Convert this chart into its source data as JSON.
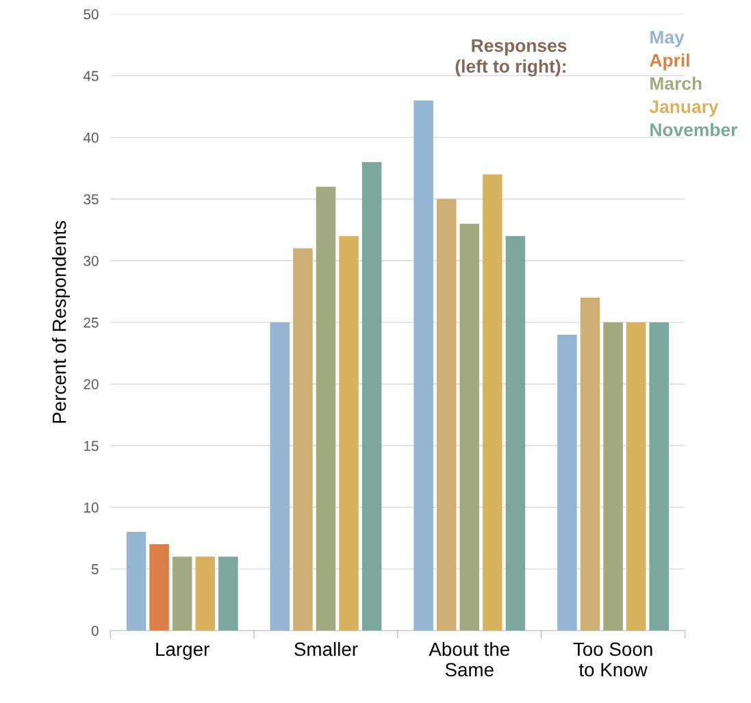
{
  "chart_data": {
    "type": "bar",
    "ylabel": "Percent of Respondents",
    "legend_title": "Responses\n(left to right):",
    "categories": [
      "Larger",
      "Smaller",
      "About the\nSame",
      "Too Soon\nto Know"
    ],
    "series": [
      {
        "name": "May",
        "color": "#95b5d5",
        "values": [
          8,
          25,
          43,
          24
        ]
      },
      {
        "name": "April",
        "color": "#dd8047",
        "colors": [
          "#dd8047",
          "#cfae74",
          "#cfae74",
          "#cfae74"
        ],
        "values": [
          7,
          31,
          35,
          27
        ]
      },
      {
        "name": "March",
        "color": "#a2ab80",
        "values": [
          6,
          36,
          33,
          25
        ]
      },
      {
        "name": "January",
        "color": "#d8b25c",
        "values": [
          6,
          32,
          37,
          25
        ]
      },
      {
        "name": "November",
        "color": "#7ba79d",
        "values": [
          6,
          38,
          32,
          25
        ]
      }
    ],
    "ylim": [
      0,
      50
    ],
    "yticks": [
      0,
      5,
      10,
      15,
      20,
      25,
      30,
      35,
      40,
      45,
      50
    ],
    "grid": "y",
    "legend": "top right"
  }
}
